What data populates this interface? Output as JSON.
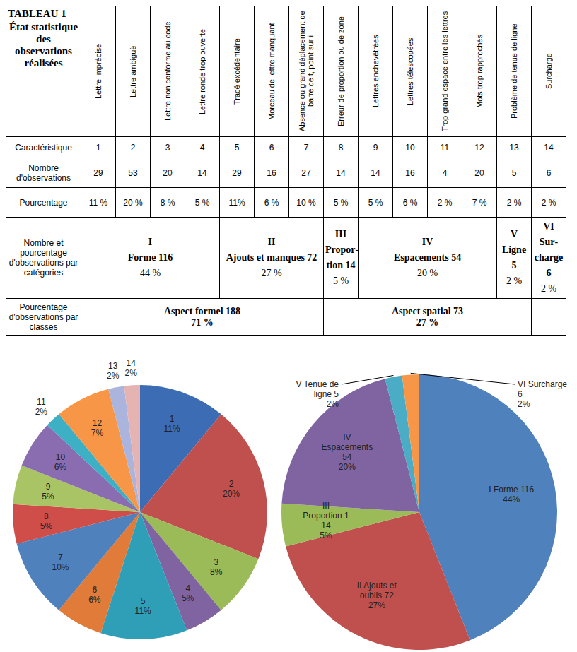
{
  "table": {
    "title": [
      "TABLEAU 1",
      "État statistique des observations réalisées"
    ],
    "columns": [
      "Lettre imprécise",
      "Lettre ambiguë",
      "Lettre non conforme au code",
      "Lettre ronde trop ouverte",
      "Tracé excédentaire",
      "Morceau de lettre manquant",
      "Absence ou grand déplacement de barre de t, point sur i",
      "Erreur de proportion ou de zone",
      "Lettres enchevêtrées",
      "Lettres télescopées",
      "Trop grand espace entre les lettres",
      "Mots trop rapprochés",
      "Problème de tenue de ligne",
      "Surcharge"
    ],
    "rows": [
      {
        "label": "Caractéristique",
        "cells": [
          1,
          2,
          3,
          4,
          5,
          6,
          7,
          8,
          9,
          10,
          11,
          12,
          13,
          14
        ]
      },
      {
        "label": "Nombre d'observations",
        "cells": [
          29,
          53,
          20,
          14,
          29,
          16,
          27,
          14,
          14,
          16,
          4,
          20,
          5,
          6
        ]
      },
      {
        "label": "Pourcentage",
        "cells": [
          "11 %",
          "20 %",
          "8 %",
          "5 %",
          "11%",
          "6 %",
          "10 %",
          "5 %",
          "5 %",
          "6 %",
          "2 %",
          "7 %",
          "2 %",
          "2 %"
        ]
      }
    ],
    "categories": {
      "label": "Nombre et pourcentage d'observations par catégories",
      "groups": [
        {
          "numeral": "I",
          "name": "Forme",
          "count": 116,
          "percent": "44 %"
        },
        {
          "numeral": "II",
          "name": "Ajouts et manques",
          "count": 72,
          "percent": "27 %"
        },
        {
          "numeral": "III",
          "name": "Propor­tion",
          "count": 14,
          "percent": "5 %"
        },
        {
          "numeral": "IV",
          "name": "Espacements",
          "count": 54,
          "percent": "20 %"
        },
        {
          "numeral": "V",
          "name": "Ligne",
          "count": 5,
          "percent": "2 %"
        },
        {
          "numeral": "VI",
          "name": "Sur­charge",
          "count": 6,
          "percent": "2 %"
        }
      ]
    },
    "classes": {
      "label": "Pourcentage d'observations par classes",
      "groups": [
        {
          "name": "Aspect formel",
          "count": 188,
          "percent": "71 %"
        },
        {
          "name": "Aspect spatial",
          "count": 73,
          "percent": "27 %"
        }
      ]
    }
  },
  "chart_data": [
    {
      "type": "pie",
      "categories": [
        "1",
        "2",
        "3",
        "4",
        "5",
        "6",
        "7",
        "8",
        "9",
        "10",
        "11",
        "12",
        "13",
        "14"
      ],
      "values": [
        11,
        20,
        8,
        5,
        11,
        6,
        10,
        5,
        5,
        6,
        2,
        7,
        2,
        2
      ],
      "value_labels": [
        "11%",
        "20%",
        "8%",
        "5%",
        "11%",
        "6%",
        "10%",
        "5%",
        "5%",
        "6%",
        "2%",
        "7%",
        "2%",
        "2%"
      ],
      "colors": [
        "#3c6cb4",
        "#c0504d",
        "#9bbb59",
        "#8064a2",
        "#2f9fb8",
        "#e07b39",
        "#4f81bd",
        "#d04e4a",
        "#a8c464",
        "#8a6cb0",
        "#3eb0c6",
        "#f79646",
        "#aab4dc",
        "#e6b3b3"
      ],
      "data_labels": true
    },
    {
      "type": "pie",
      "categories": [
        "I Forme 116",
        "II Ajouts et oublis 72",
        "III Proportion 1 14",
        "IV Espacements 54",
        "V Tenue de ligne 5",
        "VI Surcharge 6"
      ],
      "values": [
        44,
        27,
        5,
        20,
        2,
        2
      ],
      "value_labels": [
        "44%",
        "27%",
        "5%",
        "20%",
        "2%",
        "2%"
      ],
      "colors": [
        "#4f81bd",
        "#c0504d",
        "#9bbb59",
        "#8064a2",
        "#4bacc6",
        "#f79646"
      ],
      "data_labels": true
    }
  ]
}
